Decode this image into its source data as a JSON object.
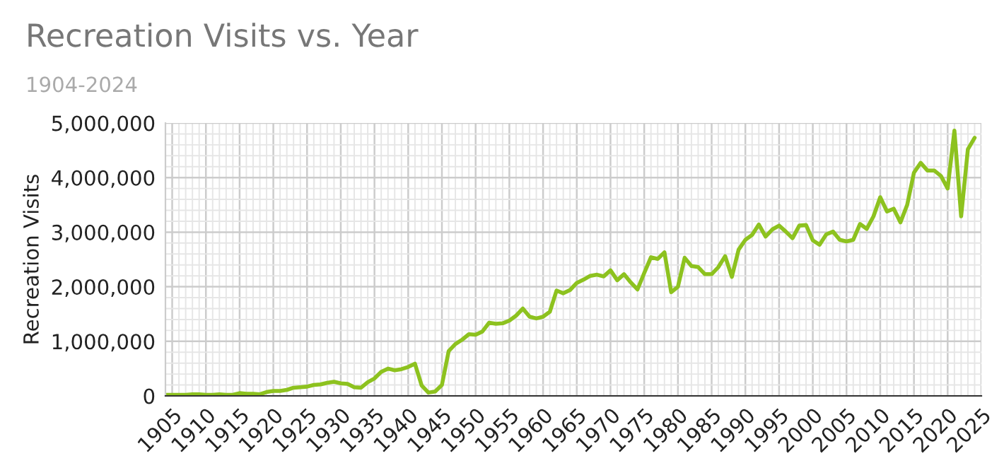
{
  "chart_data": {
    "type": "line",
    "title": "Recreation Visits vs. Year",
    "subtitle": "1904-2024",
    "ylabel": "Recreation Visits",
    "x": [
      1904,
      1905,
      1906,
      1907,
      1908,
      1909,
      1910,
      1911,
      1912,
      1913,
      1914,
      1915,
      1916,
      1917,
      1918,
      1919,
      1920,
      1921,
      1922,
      1923,
      1924,
      1925,
      1926,
      1927,
      1928,
      1929,
      1930,
      1931,
      1932,
      1933,
      1934,
      1935,
      1936,
      1937,
      1938,
      1939,
      1940,
      1941,
      1942,
      1943,
      1944,
      1945,
      1946,
      1947,
      1948,
      1949,
      1950,
      1951,
      1952,
      1953,
      1954,
      1955,
      1956,
      1957,
      1958,
      1959,
      1960,
      1961,
      1962,
      1963,
      1964,
      1965,
      1966,
      1967,
      1968,
      1969,
      1970,
      1971,
      1972,
      1973,
      1974,
      1975,
      1976,
      1977,
      1978,
      1979,
      1980,
      1981,
      1982,
      1983,
      1984,
      1985,
      1986,
      1987,
      1988,
      1989,
      1990,
      1991,
      1992,
      1993,
      1994,
      1995,
      1996,
      1997,
      1998,
      1999,
      2000,
      2001,
      2002,
      2003,
      2004,
      2005,
      2006,
      2007,
      2008,
      2009,
      2010,
      2011,
      2012,
      2013,
      2014,
      2015,
      2016,
      2017,
      2018,
      2019,
      2020,
      2021,
      2022,
      2023,
      2024
    ],
    "series": [
      {
        "color": "#8dc21f",
        "values": [
          20000,
          20000,
          20000,
          20000,
          30000,
          30000,
          20000,
          20000,
          30000,
          20000,
          20000,
          50000,
          40000,
          40000,
          30000,
          70000,
          90000,
          90000,
          110000,
          150000,
          160000,
          170000,
          200000,
          210000,
          240000,
          260000,
          230000,
          220000,
          160000,
          150000,
          250000,
          320000,
          440000,
          500000,
          470000,
          490000,
          530000,
          590000,
          190000,
          60000,
          80000,
          200000,
          820000,
          950000,
          1030000,
          1130000,
          1120000,
          1180000,
          1340000,
          1320000,
          1330000,
          1380000,
          1470000,
          1600000,
          1450000,
          1420000,
          1450000,
          1540000,
          1930000,
          1880000,
          1940000,
          2070000,
          2130000,
          2200000,
          2220000,
          2190000,
          2300000,
          2120000,
          2230000,
          2080000,
          1950000,
          2250000,
          2540000,
          2510000,
          2630000,
          1900000,
          2000000,
          2530000,
          2380000,
          2360000,
          2230000,
          2230000,
          2360000,
          2560000,
          2180000,
          2680000,
          2860000,
          2950000,
          3140000,
          2920000,
          3050000,
          3120000,
          3010000,
          2890000,
          3120000,
          3130000,
          2850000,
          2770000,
          2960000,
          3010000,
          2860000,
          2830000,
          2860000,
          3150000,
          3060000,
          3290000,
          3640000,
          3380000,
          3430000,
          3180000,
          3500000,
          4090000,
          4270000,
          4130000,
          4130000,
          4030000,
          3800000,
          4860000,
          3290000,
          4520000,
          4730000
        ]
      }
    ],
    "xlim": [
      1904,
      2025
    ],
    "xticks": [
      1905,
      1910,
      1915,
      1920,
      1925,
      1930,
      1935,
      1940,
      1945,
      1950,
      1955,
      1960,
      1965,
      1970,
      1975,
      1980,
      1985,
      1990,
      1995,
      2000,
      2005,
      2010,
      2015,
      2020,
      2025
    ],
    "ylim": [
      0,
      5000000
    ],
    "yticks": [
      {
        "value": 0,
        "label": "0"
      },
      {
        "value": 1000000,
        "label": "1,000,000"
      },
      {
        "value": 2000000,
        "label": "2,000,000"
      },
      {
        "value": 3000000,
        "label": "3,000,000"
      },
      {
        "value": 4000000,
        "label": "4,000,000"
      },
      {
        "value": 5000000,
        "label": "5,000,000"
      }
    ],
    "grid": true,
    "marker": "none",
    "line_style": "solid"
  }
}
